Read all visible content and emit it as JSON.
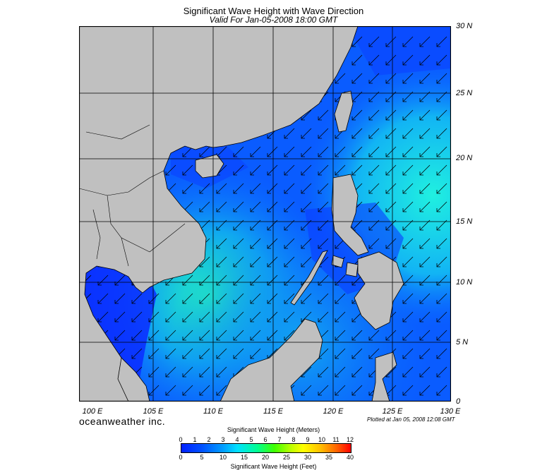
{
  "title": "Significant Wave Height with Wave Direction",
  "subtitle": "Valid For Jan-05-2008 18:00 GMT",
  "lat_labels": [
    "30 N",
    "25 N",
    "20 N",
    "15 N",
    "10 N",
    "5 N",
    "0"
  ],
  "lon_labels": [
    "100 E",
    "105 E",
    "110 E",
    "115 E",
    "120 E",
    "125 E",
    "130 E"
  ],
  "brand": "oceanweather inc.",
  "plotted": "Plotted at Jan 05, 2008 12:08 GMT",
  "colorbar": {
    "title_top": "Significant Wave Height (Meters)",
    "title_bottom": "Significant Wave Height (Feet)",
    "meters_ticks": [
      "0",
      "1",
      "2",
      "3",
      "4",
      "5",
      "6",
      "7",
      "8",
      "9",
      "10",
      "11",
      "12"
    ],
    "feet_ticks": [
      "0",
      "5",
      "10",
      "15",
      "20",
      "25",
      "30",
      "35",
      "40"
    ]
  },
  "colors": {
    "land": "#c0c0c0",
    "sea_low": "#0a2cff",
    "sea_mid": "#0a6cff",
    "sea_high": "#17e6ea",
    "arrow": "#000000"
  },
  "map_extent": {
    "lon": [
      99,
      130
    ],
    "lat": [
      0,
      30
    ]
  },
  "wave_direction": "from northeast"
}
